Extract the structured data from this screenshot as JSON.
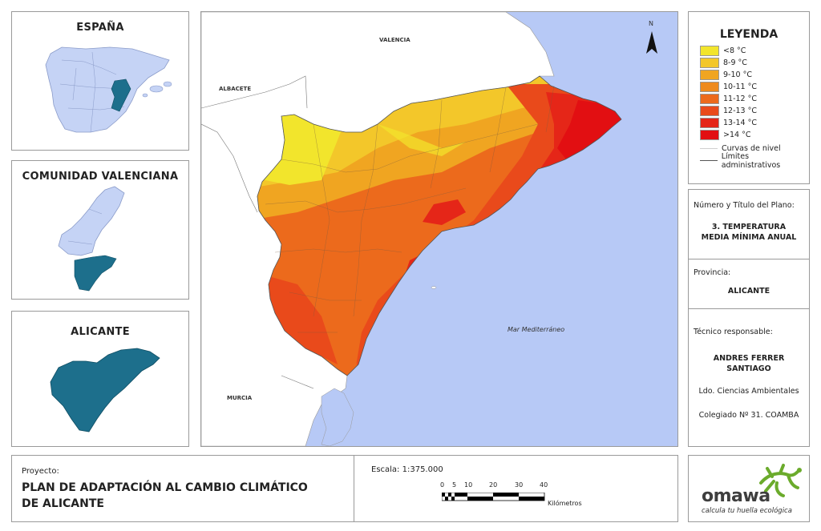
{
  "insets": {
    "spain_title": "ESPAÑA",
    "valencia_title": "COMUNIDAD VALENCIANA",
    "alicante_title": "ALICANTE"
  },
  "map": {
    "north_label": "N",
    "labels": {
      "valencia": "VALENCIA",
      "albacete": "ALBACETE",
      "murcia": "MURCIA",
      "sea": "Mar Mediterráneo"
    },
    "colors": {
      "sea": "#b7c9f6",
      "land": "#ffffff",
      "focus": "#1d6f8c",
      "region": "#c5d3f5"
    }
  },
  "legend": {
    "title": "LEYENDA",
    "classes": [
      {
        "label": "<8 °C",
        "color": "#f2e52c"
      },
      {
        "label": "8-9 °C",
        "color": "#f3c72a"
      },
      {
        "label": "9-10 °C",
        "color": "#f0a521"
      },
      {
        "label": "10-11 °C",
        "color": "#ee8a1e"
      },
      {
        "label": "11-12 °C",
        "color": "#ec6a1c"
      },
      {
        "label": "12-13 °C",
        "color": "#e94a1b"
      },
      {
        "label": "13-14 °C",
        "color": "#e52618"
      },
      {
        "label": ">14 °C",
        "color": "#e20f12"
      }
    ],
    "lines": [
      {
        "label": "Curvas de nivel",
        "color": "#cfcfcf"
      },
      {
        "label": "Límites administrativos",
        "color": "#555555"
      }
    ]
  },
  "plan": {
    "label": "Número y Título del Plano:",
    "title_line1": "3. TEMPERATURA",
    "title_line2": "MEDIA MÍNIMA ANUAL"
  },
  "province": {
    "label": "Provincia:",
    "value": "ALICANTE"
  },
  "technician": {
    "label": "Técnico responsable:",
    "name_line1": "ANDRES FERRER",
    "name_line2": "SANTIAGO",
    "degree": "Ldo. Ciencias Ambientales",
    "college": "Colegiado Nº 31. COAMBA"
  },
  "project": {
    "label": "Proyecto:",
    "title_line1": "PLAN DE ADAPTACIÓN AL CAMBIO CLIMÁTICO",
    "title_line2": "DE ALICANTE"
  },
  "scale": {
    "label": "Escala: 1:375.000",
    "ticks": [
      "0",
      "5",
      "10",
      "20",
      "30",
      "40"
    ],
    "unit": "Kilómetros"
  },
  "logo": {
    "name": "omawa",
    "tagline": "calcula tu huella ecológica"
  }
}
